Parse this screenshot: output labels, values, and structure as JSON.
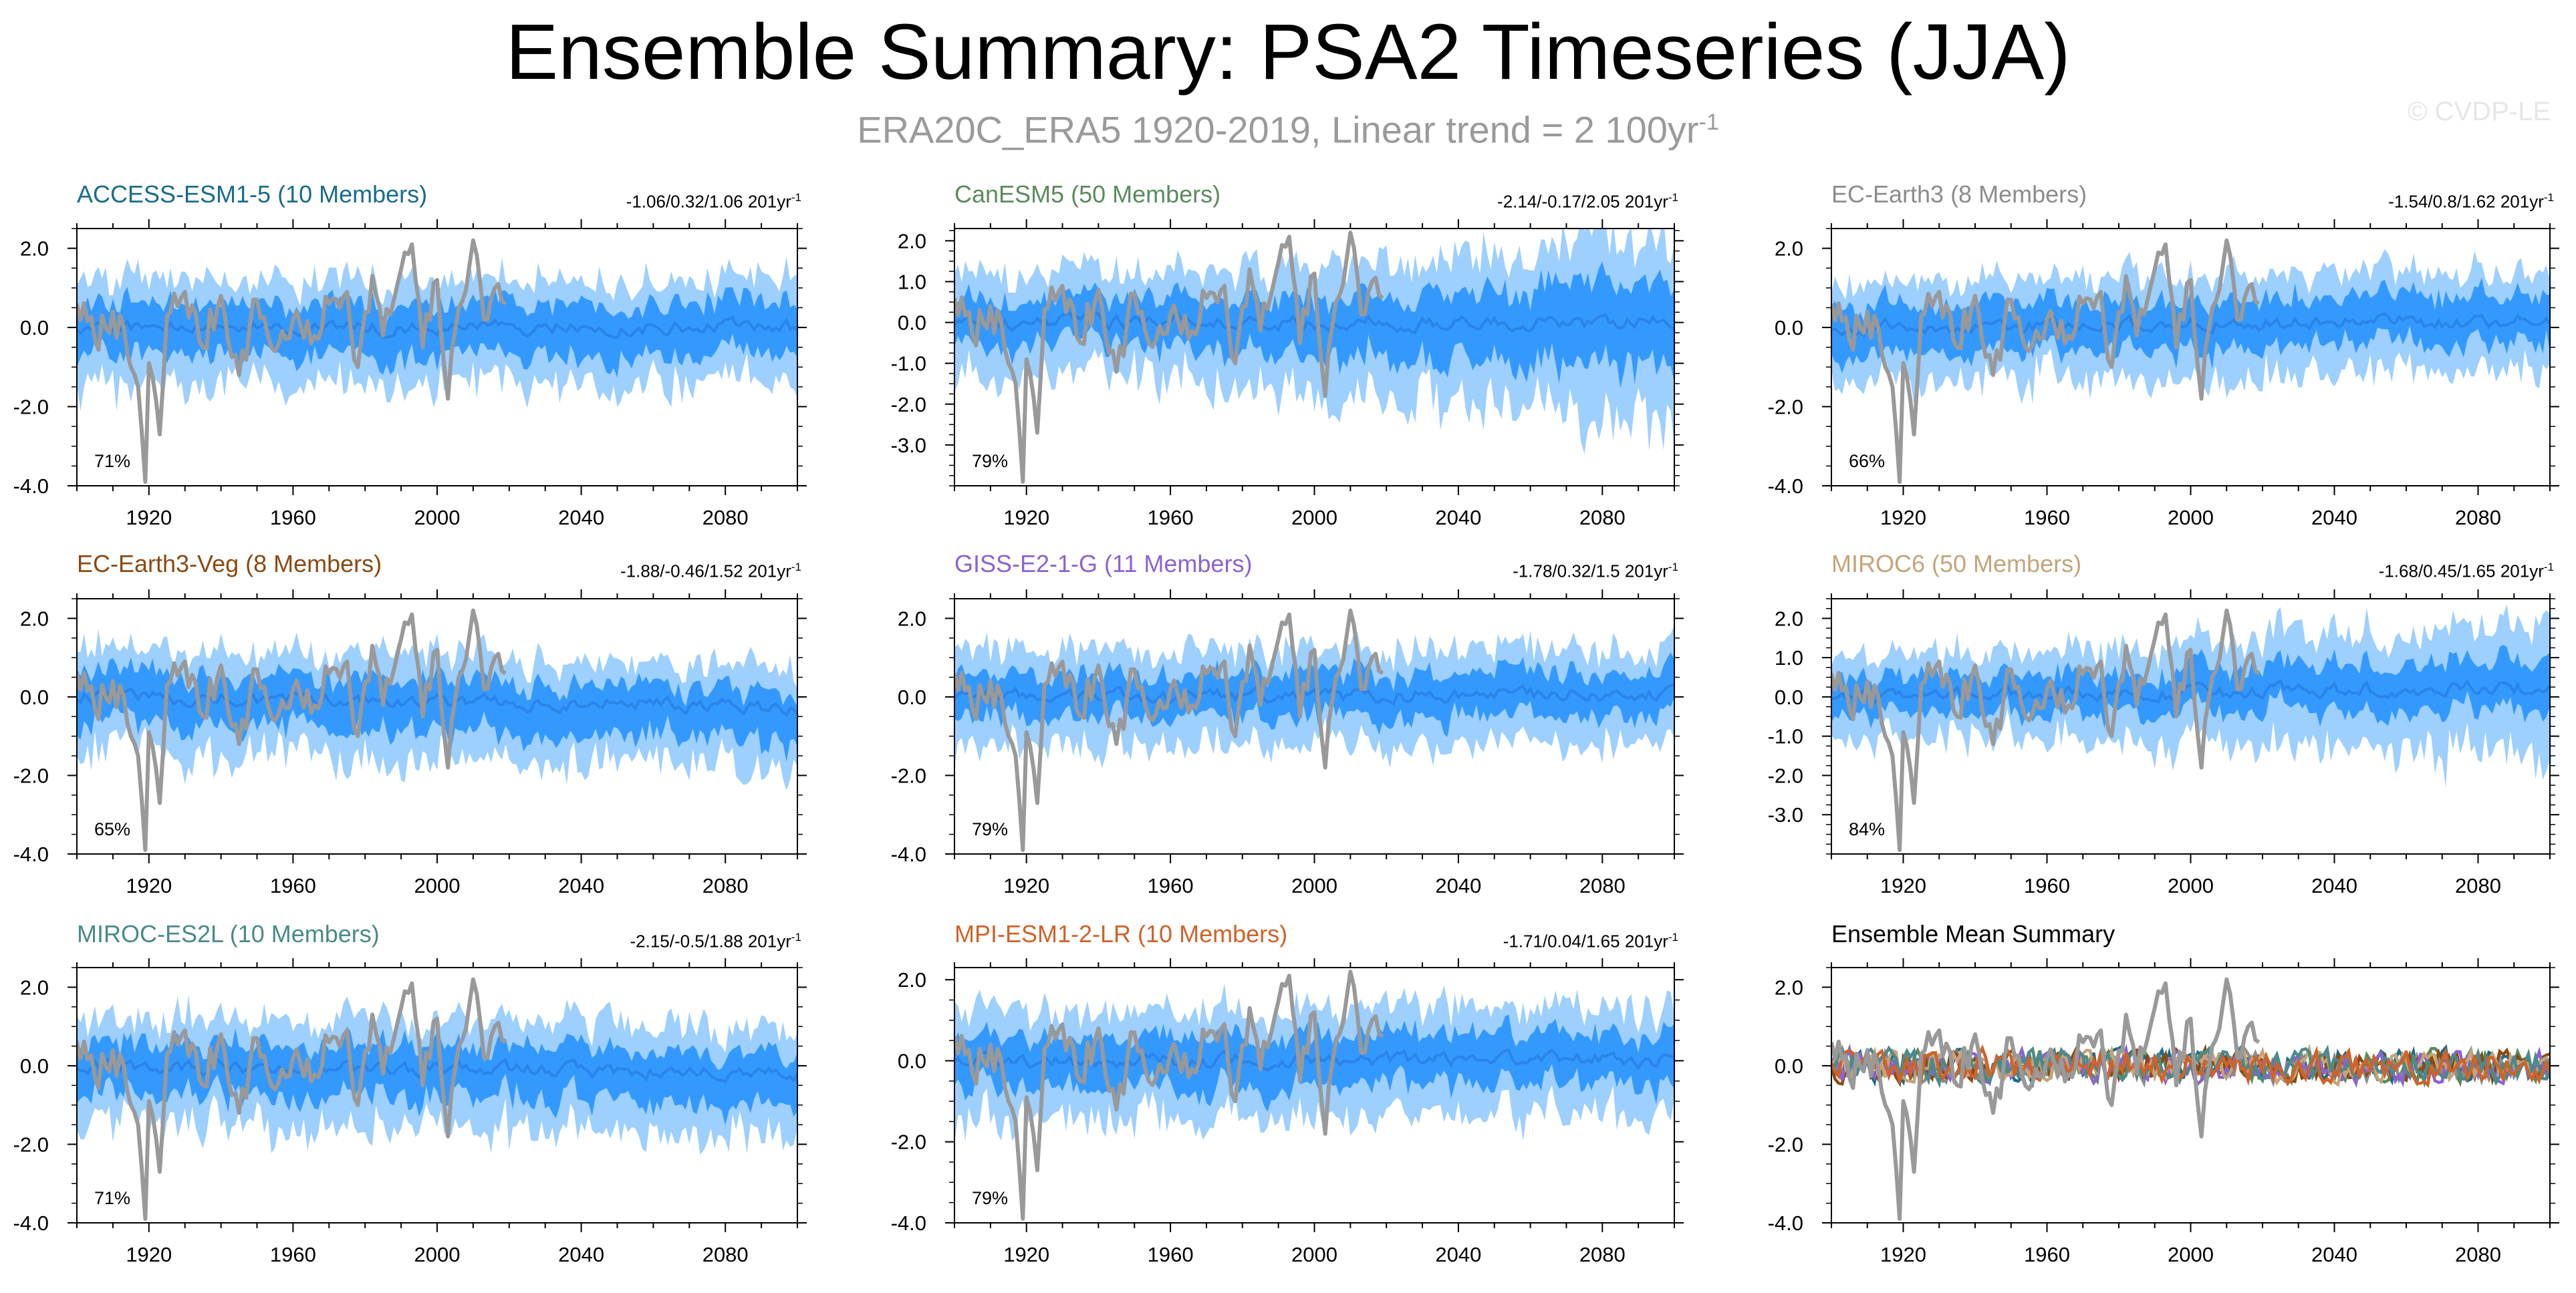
{
  "title": "Ensemble Summary: PSA2 Timeseries (JJA)",
  "subtitle": "ERA20C_ERA5 1920-2019, Linear trend = 2 100yr",
  "subtitle_sup": "-1",
  "watermark": "© CVDP-LE",
  "colors": {
    "outer_band": "#9dcfff",
    "inner_band": "#3399ff",
    "ensemble_mean": "#2b84e8",
    "observation": "#999999",
    "axis": "#000000"
  },
  "chart_data": [
    {
      "type": "area",
      "title": "ACCESS-ESM1-5 (10 Members)",
      "title_color": "#186d88",
      "trend_text": "-1.06/0.32/1.06 201yr",
      "trend_sup": "-1",
      "percent": "71%",
      "xlim": [
        1900,
        2100
      ],
      "ylim": [
        -4.0,
        2.5
      ],
      "x_ticks": [
        "1920",
        "1960",
        "2000",
        "2040",
        "2080"
      ],
      "y_ticks": [
        "2.0",
        "0.0",
        "-2.0",
        "-4.0"
      ],
      "y_tick_values": [
        2.0,
        0.0,
        -2.0,
        -4.0
      ],
      "outer_halfwidth": 1.2,
      "inner_halfwidth": 0.65,
      "trend_per_century": 0.0
    },
    {
      "type": "area",
      "title": "CanESM5 (50 Members)",
      "title_color": "#5b8a5e",
      "trend_text": "-2.14/-0.17/2.05 201yr",
      "trend_sup": "-1",
      "percent": "79%",
      "xlim": [
        1900,
        2100
      ],
      "ylim": [
        -4.0,
        2.3
      ],
      "x_ticks": [
        "1920",
        "1960",
        "2000",
        "2040",
        "2080"
      ],
      "y_ticks": [
        "2.0",
        "1.0",
        "0.0",
        "-1.0",
        "-2.0",
        "-3.0"
      ],
      "y_tick_values": [
        2.0,
        1.0,
        0.0,
        -1.0,
        -2.0,
        -3.0
      ],
      "outer_halfwidth": 1.1,
      "inner_halfwidth": 0.55,
      "trend_per_century": 0.0,
      "widening": 0.9
    },
    {
      "type": "area",
      "title": "EC-Earth3 (8 Members)",
      "title_color": "#8c8c8c",
      "trend_text": "-1.54/0.8/1.62 201yr",
      "trend_sup": "-1",
      "percent": "66%",
      "xlim": [
        1900,
        2100
      ],
      "ylim": [
        -4.0,
        2.5
      ],
      "x_ticks": [
        "1920",
        "1960",
        "2000",
        "2040",
        "2080"
      ],
      "y_ticks": [
        "2.0",
        "0.0",
        "-2.0",
        "-4.0"
      ],
      "y_tick_values": [
        2.0,
        0.0,
        -2.0,
        -4.0
      ],
      "outer_halfwidth": 1.15,
      "inner_halfwidth": 0.6,
      "trend_per_century": 0.15
    },
    {
      "type": "area",
      "title": "EC-Earth3-Veg (8 Members)",
      "title_color": "#8b4a12",
      "trend_text": "-1.88/-0.46/1.52 201yr",
      "trend_sup": "-1",
      "percent": "65%",
      "xlim": [
        1900,
        2100
      ],
      "ylim": [
        -4.0,
        2.5
      ],
      "x_ticks": [
        "1920",
        "1960",
        "2000",
        "2040",
        "2080"
      ],
      "y_ticks": [
        "2.0",
        "0.0",
        "-2.0",
        "-4.0"
      ],
      "y_tick_values": [
        2.0,
        0.0,
        -2.0,
        -4.0
      ],
      "outer_halfwidth": 1.2,
      "inner_halfwidth": 0.65,
      "trend_per_century": -0.2
    },
    {
      "type": "area",
      "title": "GISS-E2-1-G (11 Members)",
      "title_color": "#8a63d2",
      "trend_text": "-1.78/0.32/1.5 201yr",
      "trend_sup": "-1",
      "percent": "79%",
      "xlim": [
        1900,
        2100
      ],
      "ylim": [
        -4.0,
        2.5
      ],
      "x_ticks": [
        "1920",
        "1960",
        "2000",
        "2040",
        "2080"
      ],
      "y_ticks": [
        "2.0",
        "0.0",
        "-2.0",
        "-4.0"
      ],
      "y_tick_values": [
        2.0,
        0.0,
        -2.0,
        -4.0
      ],
      "outer_halfwidth": 1.1,
      "inner_halfwidth": 0.55,
      "trend_per_century": 0.05
    },
    {
      "type": "area",
      "title": "MIROC6 (50 Members)",
      "title_color": "#c4a47a",
      "trend_text": "-1.68/0.45/1.65 201yr",
      "trend_sup": "-1",
      "percent": "84%",
      "xlim": [
        1900,
        2100
      ],
      "ylim": [
        -4.0,
        2.5
      ],
      "x_ticks": [
        "1920",
        "1960",
        "2000",
        "2040",
        "2080"
      ],
      "y_ticks": [
        "2.0",
        "1.0",
        "0.0",
        "-1.0",
        "-2.0",
        "-3.0"
      ],
      "y_tick_values": [
        2.0,
        1.0,
        0.0,
        -1.0,
        -2.0,
        -3.0
      ],
      "outer_halfwidth": 1.0,
      "inner_halfwidth": 0.45,
      "trend_per_century": 0.2,
      "widening": 0.5
    },
    {
      "type": "area",
      "title": "MIROC-ES2L (10 Members)",
      "title_color": "#4b8a8a",
      "trend_text": "-2.15/-0.5/1.88 201yr",
      "trend_sup": "-1",
      "percent": "71%",
      "xlim": [
        1900,
        2100
      ],
      "ylim": [
        -4.0,
        2.5
      ],
      "x_ticks": [
        "1920",
        "1960",
        "2000",
        "2040",
        "2080"
      ],
      "y_ticks": [
        "2.0",
        "0.0",
        "-2.0",
        "-4.0"
      ],
      "y_tick_values": [
        2.0,
        0.0,
        -2.0,
        -4.0
      ],
      "outer_halfwidth": 1.25,
      "inner_halfwidth": 0.65,
      "trend_per_century": -0.15
    },
    {
      "type": "area",
      "title": "MPI-ESM1-2-LR (10 Members)",
      "title_color": "#d0622a",
      "trend_text": "-1.71/0.04/1.65 201yr",
      "trend_sup": "-1",
      "percent": "79%",
      "xlim": [
        1900,
        2100
      ],
      "ylim": [
        -4.0,
        2.3
      ],
      "x_ticks": [
        "1920",
        "1960",
        "2000",
        "2040",
        "2080"
      ],
      "y_ticks": [
        "2.0",
        "0.0",
        "-2.0",
        "-4.0"
      ],
      "y_tick_values": [
        2.0,
        0.0,
        -2.0,
        -4.0
      ],
      "outer_halfwidth": 1.2,
      "inner_halfwidth": 0.62,
      "trend_per_century": 0.0
    },
    {
      "type": "line",
      "title": "Ensemble Mean Summary",
      "title_color": "#000000",
      "trend_text": "",
      "trend_sup": "",
      "percent": "",
      "xlim": [
        1900,
        2100
      ],
      "ylim": [
        -4.0,
        2.5
      ],
      "x_ticks": [
        "1920",
        "1960",
        "2000",
        "2040",
        "2080"
      ],
      "y_ticks": [
        "2.0",
        "0.0",
        "-2.0",
        "-4.0"
      ],
      "y_tick_values": [
        2.0,
        0.0,
        -2.0,
        -4.0
      ],
      "series_colors": [
        "#186d88",
        "#5b8a5e",
        "#8c8c8c",
        "#8b4a12",
        "#8a63d2",
        "#c4a47a",
        "#4b8a8a",
        "#d0622a"
      ]
    }
  ],
  "observation": {
    "name": "ERA20C_ERA5",
    "years": [
      1900,
      2019
    ],
    "key_points": [
      [
        1900,
        0.6
      ],
      [
        1905,
        -0.3
      ],
      [
        1910,
        0.4
      ],
      [
        1917,
        -1.5
      ],
      [
        1919,
        -3.9
      ],
      [
        1920,
        -0.9
      ],
      [
        1923,
        -2.7
      ],
      [
        1925,
        0.3
      ],
      [
        1930,
        0.9
      ],
      [
        1935,
        -0.5
      ],
      [
        1940,
        0.8
      ],
      [
        1945,
        -1.2
      ],
      [
        1950,
        0.7
      ],
      [
        1955,
        -0.6
      ],
      [
        1960,
        0.2
      ],
      [
        1965,
        -0.4
      ],
      [
        1970,
        0.6
      ],
      [
        1975,
        0.9
      ],
      [
        1978,
        -1.0
      ],
      [
        1982,
        1.3
      ],
      [
        1985,
        -0.2
      ],
      [
        1989,
        1.1
      ],
      [
        1993,
        2.1
      ],
      [
        1996,
        -0.5
      ],
      [
        2000,
        1.2
      ],
      [
        2003,
        -1.8
      ],
      [
        2006,
        0.5
      ],
      [
        2010,
        2.2
      ],
      [
        2013,
        0.2
      ],
      [
        2016,
        1.0
      ],
      [
        2019,
        0.6
      ]
    ]
  }
}
